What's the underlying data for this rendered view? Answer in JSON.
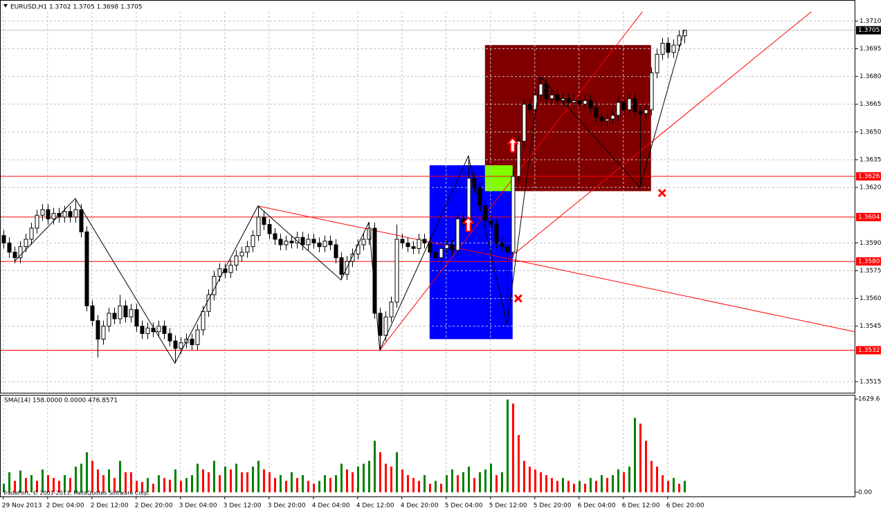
{
  "chart_data": [
    {
      "type": "candlestick",
      "title": "EURUSD,H1  1.3702 1.3705 1.3698 1.3705",
      "xlim": [
        -0.6,
        153.9
      ],
      "xticks": [
        {
          "value": 0,
          "label": "29 Nov 2013"
        },
        {
          "value": 8,
          "label": "2 Dec 04:00"
        },
        {
          "value": 16,
          "label": "2 Dec 12:00"
        },
        {
          "value": 24,
          "label": "2 Dec 20:00"
        },
        {
          "value": 32,
          "label": "3 Dec 04:00"
        },
        {
          "value": 40,
          "label": "3 Dec 12:00"
        },
        {
          "value": 48,
          "label": "3 Dec 20:00"
        },
        {
          "value": 56,
          "label": "4 Dec 04:00"
        },
        {
          "value": 64,
          "label": "4 Dec 12:00"
        },
        {
          "value": 72,
          "label": "4 Dec 20:00"
        },
        {
          "value": 80,
          "label": "5 Dec 04:00"
        },
        {
          "value": 88,
          "label": "5 Dec 12:00"
        },
        {
          "value": 96,
          "label": "5 Dec 20:00"
        },
        {
          "value": 104,
          "label": "6 Dec 04:00"
        },
        {
          "value": 112,
          "label": "6 Dec 12:00"
        },
        {
          "value": 120,
          "label": "6 Dec 20:00"
        }
      ],
      "ylim": [
        1.3509,
        1.3715
      ],
      "yticks": [
        {
          "value": 1.371,
          "label": "1.3710"
        },
        1.3695,
        {
          "value": 1.368,
          "label": "1.3680"
        },
        1.3665,
        {
          "value": 1.365,
          "label": "1.3650"
        },
        1.3635,
        {
          "value": 1.362,
          "label": "1.3620"
        },
        {
          "value": 1.359,
          "label": "1.3590"
        },
        1.3575,
        {
          "value": 1.356,
          "label": "1.3560"
        },
        1.3545,
        1.3515
      ],
      "grid": true,
      "up_color": "#ffffff",
      "down_color": "#000000",
      "ohlc": [
        [
          1.3594,
          1.3597,
          1.3587,
          1.359
        ],
        [
          1.359,
          1.3593,
          1.3582,
          1.3585
        ],
        [
          1.3585,
          1.3588,
          1.3579,
          1.3582
        ],
        [
          1.3582,
          1.3591,
          1.3579,
          1.3588
        ],
        [
          1.3588,
          1.3595,
          1.3585,
          1.3592
        ],
        [
          1.3592,
          1.3601,
          1.3589,
          1.3598
        ],
        [
          1.3598,
          1.3608,
          1.3595,
          1.3605
        ],
        [
          1.3605,
          1.3611,
          1.3602,
          1.3608
        ],
        [
          1.3608,
          1.3611,
          1.36,
          1.3603
        ],
        [
          1.3603,
          1.3609,
          1.36,
          1.3606
        ],
        [
          1.3606,
          1.3609,
          1.3601,
          1.3604
        ],
        [
          1.3604,
          1.361,
          1.3601,
          1.3607
        ],
        [
          1.3607,
          1.361,
          1.3601,
          1.3604
        ],
        [
          1.3604,
          1.3614,
          1.3601,
          1.3608
        ],
        [
          1.3608,
          1.3611,
          1.3593,
          1.3596
        ],
        [
          1.3596,
          1.3599,
          1.3553,
          1.3556
        ],
        [
          1.3556,
          1.3559,
          1.3545,
          1.3548
        ],
        [
          1.3548,
          1.3551,
          1.3528,
          1.3538
        ],
        [
          1.3538,
          1.3548,
          1.3535,
          1.3545
        ],
        [
          1.3545,
          1.3555,
          1.3542,
          1.3552
        ],
        [
          1.3552,
          1.3555,
          1.3546,
          1.3549
        ],
        [
          1.3549,
          1.3562,
          1.3546,
          1.3556
        ],
        [
          1.3556,
          1.3559,
          1.3547,
          1.355
        ],
        [
          1.355,
          1.3557,
          1.3547,
          1.3554
        ],
        [
          1.3554,
          1.3557,
          1.3542,
          1.3545
        ],
        [
          1.3545,
          1.3548,
          1.3538,
          1.3541
        ],
        [
          1.3541,
          1.3547,
          1.3538,
          1.3544
        ],
        [
          1.3544,
          1.3547,
          1.3539,
          1.3542
        ],
        [
          1.3542,
          1.3548,
          1.3539,
          1.3545
        ],
        [
          1.3545,
          1.3548,
          1.3538,
          1.3541
        ],
        [
          1.3541,
          1.3544,
          1.3534,
          1.3537
        ],
        [
          1.3537,
          1.354,
          1.3525,
          1.3533
        ],
        [
          1.3533,
          1.3539,
          1.353,
          1.3536
        ],
        [
          1.3536,
          1.3541,
          1.3533,
          1.3538
        ],
        [
          1.3538,
          1.3541,
          1.3532,
          1.3535
        ],
        [
          1.3535,
          1.3546,
          1.3532,
          1.3543
        ],
        [
          1.3543,
          1.3556,
          1.354,
          1.3553
        ],
        [
          1.3553,
          1.3565,
          1.355,
          1.3562
        ],
        [
          1.3562,
          1.3575,
          1.3559,
          1.3572
        ],
        [
          1.3572,
          1.3579,
          1.3569,
          1.3576
        ],
        [
          1.3576,
          1.3579,
          1.3571,
          1.3574
        ],
        [
          1.3574,
          1.3581,
          1.3571,
          1.3578
        ],
        [
          1.3578,
          1.3586,
          1.3575,
          1.3583
        ],
        [
          1.3583,
          1.3588,
          1.358,
          1.3585
        ],
        [
          1.3585,
          1.3591,
          1.3582,
          1.3588
        ],
        [
          1.3588,
          1.3597,
          1.3585,
          1.3594
        ],
        [
          1.3594,
          1.361,
          1.3591,
          1.3604
        ],
        [
          1.3604,
          1.3607,
          1.3597,
          1.36
        ],
        [
          1.36,
          1.3603,
          1.3592,
          1.3595
        ],
        [
          1.3595,
          1.3598,
          1.3589,
          1.3592
        ],
        [
          1.3592,
          1.3595,
          1.3586,
          1.3589
        ],
        [
          1.3589,
          1.3594,
          1.3586,
          1.3591
        ],
        [
          1.3591,
          1.3594,
          1.3587,
          1.359
        ],
        [
          1.359,
          1.3596,
          1.3587,
          1.3593
        ],
        [
          1.3593,
          1.3596,
          1.3586,
          1.3589
        ],
        [
          1.3589,
          1.3595,
          1.3586,
          1.3592
        ],
        [
          1.3592,
          1.3595,
          1.3587,
          1.359
        ],
        [
          1.359,
          1.3593,
          1.3585,
          1.3588
        ],
        [
          1.3588,
          1.3594,
          1.3585,
          1.3591
        ],
        [
          1.3591,
          1.3594,
          1.3586,
          1.3589
        ],
        [
          1.3589,
          1.3592,
          1.3579,
          1.3582
        ],
        [
          1.3582,
          1.3585,
          1.357,
          1.3573
        ],
        [
          1.3573,
          1.3583,
          1.357,
          1.358
        ],
        [
          1.358,
          1.3587,
          1.3577,
          1.3584
        ],
        [
          1.3584,
          1.3592,
          1.3581,
          1.3589
        ],
        [
          1.3589,
          1.3595,
          1.3586,
          1.3592
        ],
        [
          1.3592,
          1.3601,
          1.3589,
          1.3598
        ],
        [
          1.3598,
          1.3601,
          1.3549,
          1.3552
        ],
        [
          1.3552,
          1.3555,
          1.3532,
          1.354
        ],
        [
          1.354,
          1.3553,
          1.3537,
          1.355
        ],
        [
          1.355,
          1.3561,
          1.3547,
          1.3558
        ],
        [
          1.3558,
          1.36,
          1.3555,
          1.3592
        ],
        [
          1.3592,
          1.3595,
          1.3587,
          1.359
        ],
        [
          1.359,
          1.3593,
          1.3585,
          1.3588
        ],
        [
          1.3588,
          1.3591,
          1.3584,
          1.3587
        ],
        [
          1.3587,
          1.3595,
          1.3584,
          1.3592
        ],
        [
          1.3592,
          1.3595,
          1.3587,
          1.359
        ],
        [
          1.359,
          1.3593,
          1.3582,
          1.3585
        ],
        [
          1.3585,
          1.3588,
          1.3579,
          1.3582
        ],
        [
          1.3582,
          1.359,
          1.3579,
          1.3587
        ],
        [
          1.3587,
          1.3592,
          1.3584,
          1.3589
        ],
        [
          1.3589,
          1.3592,
          1.3583,
          1.3586
        ],
        [
          1.3586,
          1.3606,
          1.3583,
          1.3603
        ],
        [
          1.3603,
          1.3606,
          1.3597,
          1.36
        ],
        [
          1.36,
          1.3637,
          1.3597,
          1.3625
        ],
        [
          1.3625,
          1.3628,
          1.3617,
          1.362
        ],
        [
          1.362,
          1.3623,
          1.3607,
          1.361
        ],
        [
          1.361,
          1.3613,
          1.3599,
          1.3602
        ],
        [
          1.3602,
          1.3605,
          1.3597,
          1.36
        ],
        [
          1.36,
          1.3603,
          1.3587,
          1.359
        ],
        [
          1.359,
          1.3593,
          1.3585,
          1.3588
        ],
        [
          1.3588,
          1.3591,
          1.3546,
          1.3585
        ],
        [
          1.3585,
          1.3629,
          1.3582,
          1.3626
        ],
        [
          1.3626,
          1.3648,
          1.3623,
          1.3645
        ],
        [
          1.3645,
          1.3668,
          1.3642,
          1.3665
        ],
        [
          1.3665,
          1.3668,
          1.3659,
          1.3662
        ],
        [
          1.3662,
          1.3673,
          1.3659,
          1.367
        ],
        [
          1.367,
          1.368,
          1.3667,
          1.3676
        ],
        [
          1.3676,
          1.3679,
          1.3665,
          1.3668
        ],
        [
          1.3668,
          1.3673,
          1.3665,
          1.367
        ],
        [
          1.367,
          1.3673,
          1.3664,
          1.3667
        ],
        [
          1.3667,
          1.3671,
          1.3664,
          1.3668
        ],
        [
          1.3668,
          1.3671,
          1.3663,
          1.3666
        ],
        [
          1.3666,
          1.367,
          1.3663,
          1.3667
        ],
        [
          1.3667,
          1.367,
          1.3662,
          1.3665
        ],
        [
          1.3665,
          1.367,
          1.3662,
          1.3667
        ],
        [
          1.3667,
          1.367,
          1.366,
          1.3663
        ],
        [
          1.3663,
          1.3666,
          1.3655,
          1.3658
        ],
        [
          1.3658,
          1.3661,
          1.3653,
          1.3656
        ],
        [
          1.3656,
          1.366,
          1.3653,
          1.3657
        ],
        [
          1.3657,
          1.3662,
          1.3654,
          1.3659
        ],
        [
          1.3659,
          1.3669,
          1.3656,
          1.3666
        ],
        [
          1.3666,
          1.3669,
          1.3659,
          1.3662
        ],
        [
          1.3662,
          1.3671,
          1.3659,
          1.3668
        ],
        [
          1.3668,
          1.3671,
          1.3658,
          1.3661
        ],
        [
          1.3661,
          1.3664,
          1.362,
          1.366
        ],
        [
          1.366,
          1.3665,
          1.3657,
          1.3662
        ],
        [
          1.3662,
          1.3685,
          1.3659,
          1.3682
        ],
        [
          1.3682,
          1.3695,
          1.3679,
          1.3692
        ],
        [
          1.3692,
          1.3701,
          1.3689,
          1.3698
        ],
        [
          1.3698,
          1.3701,
          1.369,
          1.3693
        ],
        [
          1.3693,
          1.37,
          1.369,
          1.3697
        ],
        [
          1.3697,
          1.3705,
          1.3694,
          1.3702
        ],
        [
          1.3702,
          1.3705,
          1.3698,
          1.3705
        ]
      ],
      "last_price": 1.3705,
      "price_lines": [
        1.3626,
        1.3604,
        {
          "value": 1.358,
          "label": "1.3580"
        },
        1.3532
      ],
      "line_color": "#ff0000",
      "trendlines": [
        {
          "x": [
            46,
            153.75
          ],
          "y": [
            1.361,
            1.3542
          ]
        },
        {
          "x": [
            68,
            117
          ],
          "y": [
            1.3532,
            1.3721
          ]
        },
        {
          "x": [
            91,
            148
          ],
          "y": [
            1.3581,
            1.372
          ]
        }
      ],
      "rectangles": [
        {
          "x": [
            77,
            92
          ],
          "y": [
            1.3632,
            1.3538
          ],
          "color": "#0000ff"
        },
        {
          "x": [
            87,
            117
          ],
          "y": [
            1.3697,
            1.3618
          ],
          "color": "#800000"
        },
        {
          "x": [
            87,
            92
          ],
          "y": [
            1.3632,
            1.3618
          ],
          "color": "#80ff00"
        }
      ],
      "zigzag": {
        "x": [
          2,
          13,
          31,
          46,
          61,
          66,
          68,
          84,
          91,
          97,
          115,
          123
        ],
        "y": [
          1.358,
          1.3614,
          1.3525,
          1.361,
          1.357,
          1.3601,
          1.3532,
          1.3637,
          1.3546,
          1.368,
          1.362,
          1.3705
        ]
      },
      "arrows": [
        {
          "x": 84,
          "y": 1.36
        },
        {
          "x": 92,
          "y": 1.3643
        }
      ],
      "crosses": [
        {
          "x": 93,
          "y": 1.356
        },
        {
          "x": 119,
          "y": 1.3617
        }
      ]
    },
    {
      "type": "bar",
      "label": "SMA(14) 158.0000 0.0000 476.8571",
      "watermark": "TradePort, © 2001-2013, MetaQuotes Software Corp.",
      "ylim": [
        0,
        1629.6
      ],
      "yticks": [
        1629.6,
        {
          "value": 0,
          "label": "0.00"
        }
      ],
      "up_color": "#008000",
      "down_color": "#ff0000",
      "values": [
        150,
        350,
        200,
        380,
        250,
        300,
        200,
        400,
        300,
        250,
        200,
        300,
        250,
        450,
        500,
        700,
        550,
        400,
        300,
        400,
        250,
        550,
        350,
        350,
        200,
        180,
        250,
        150,
        300,
        250,
        220,
        400,
        200,
        250,
        300,
        500,
        400,
        350,
        550,
        300,
        450,
        400,
        500,
        350,
        350,
        450,
        550,
        400,
        350,
        250,
        300,
        200,
        350,
        250,
        300,
        200,
        150,
        200,
        300,
        250,
        300,
        500,
        400,
        350,
        450,
        500,
        550,
        900,
        700,
        500,
        450,
        700,
        400,
        300,
        250,
        200,
        300,
        150,
        200,
        150,
        300,
        400,
        300,
        350,
        450,
        250,
        350,
        400,
        500,
        300,
        350,
        1620,
        1550,
        1000,
        550,
        450,
        400,
        350,
        300,
        250,
        200,
        250,
        200,
        150,
        200,
        150,
        250,
        200,
        300,
        250,
        300,
        400,
        350,
        450,
        1300,
        1200,
        900,
        550,
        450,
        300,
        200,
        250,
        150,
        200
      ]
    }
  ]
}
